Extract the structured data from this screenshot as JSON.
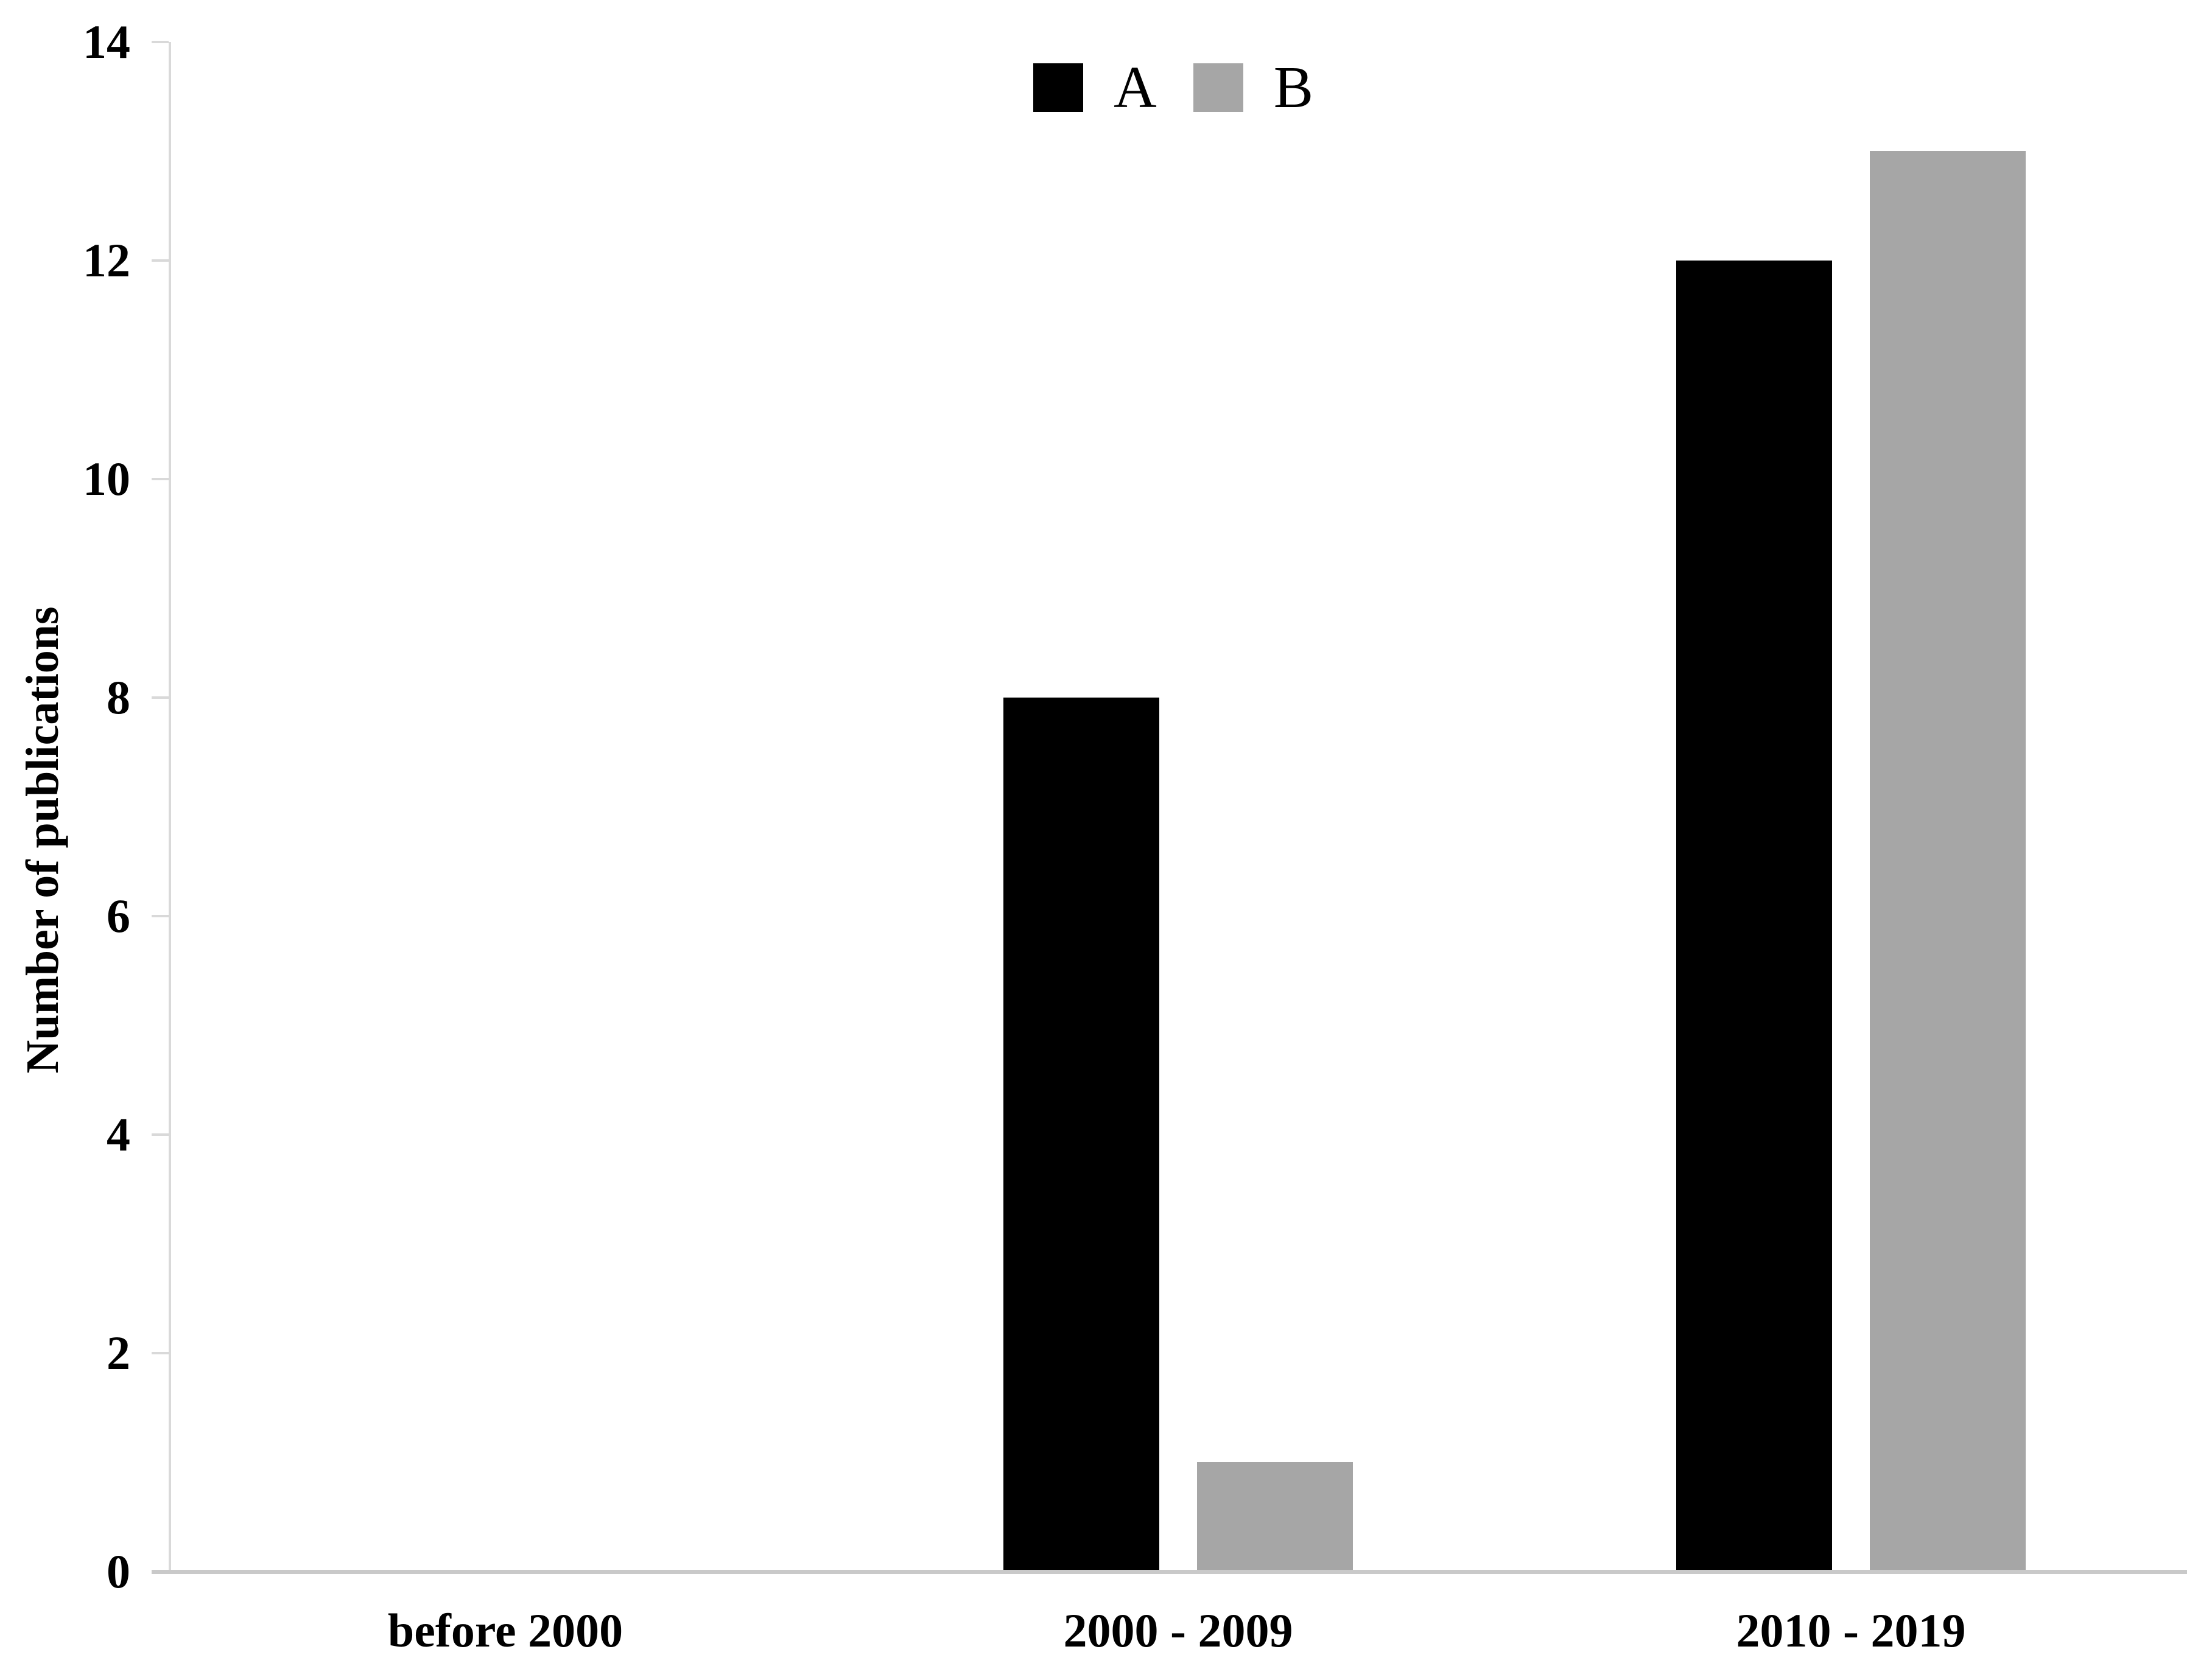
{
  "chart_data": {
    "type": "bar",
    "title": "",
    "categories": [
      "before 2000",
      "2000 - 2009",
      "2010 - 2019"
    ],
    "series": [
      {
        "name": "A",
        "color": "#000000",
        "values": [
          0,
          8,
          12
        ]
      },
      {
        "name": "B",
        "color": "#a6a6a6",
        "values": [
          0,
          1,
          13
        ]
      }
    ],
    "xlabel": "",
    "ylabel": "Number of publications",
    "ylim": [
      0,
      14
    ],
    "yticks": [
      0,
      2,
      4,
      6,
      8,
      10,
      12,
      14
    ],
    "grid": false,
    "legend_position": "top-center",
    "colors": {
      "x_axis_line": "#c9c9c9",
      "y_axis_line": "#d9d9d9",
      "tick_mark": "#d9d9d9",
      "text": "#000000",
      "background": "#ffffff"
    }
  }
}
